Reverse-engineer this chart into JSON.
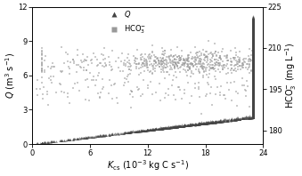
{
  "xlabel": "$K_{\\mathrm{cs}}$ (10$^{-3}$ kg C s$^{-1}$)",
  "ylabel_left": "$Q$ (m$^{3}$ s$^{-1}$)",
  "ylabel_right": "HCO$_{3}^{-}$ (mg L$^{-1}$)",
  "xlim": [
    0,
    24
  ],
  "ylim_left": [
    0,
    12
  ],
  "ylim_right": [
    175,
    225
  ],
  "yticks_left": [
    0,
    3,
    6,
    9,
    12
  ],
  "yticks_right": [
    180,
    195,
    210,
    225
  ],
  "xticks": [
    0,
    6,
    12,
    18,
    24
  ],
  "legend_Q": "$Q$",
  "legend_HCO3": "HCO$_{3}^{-}$"
}
